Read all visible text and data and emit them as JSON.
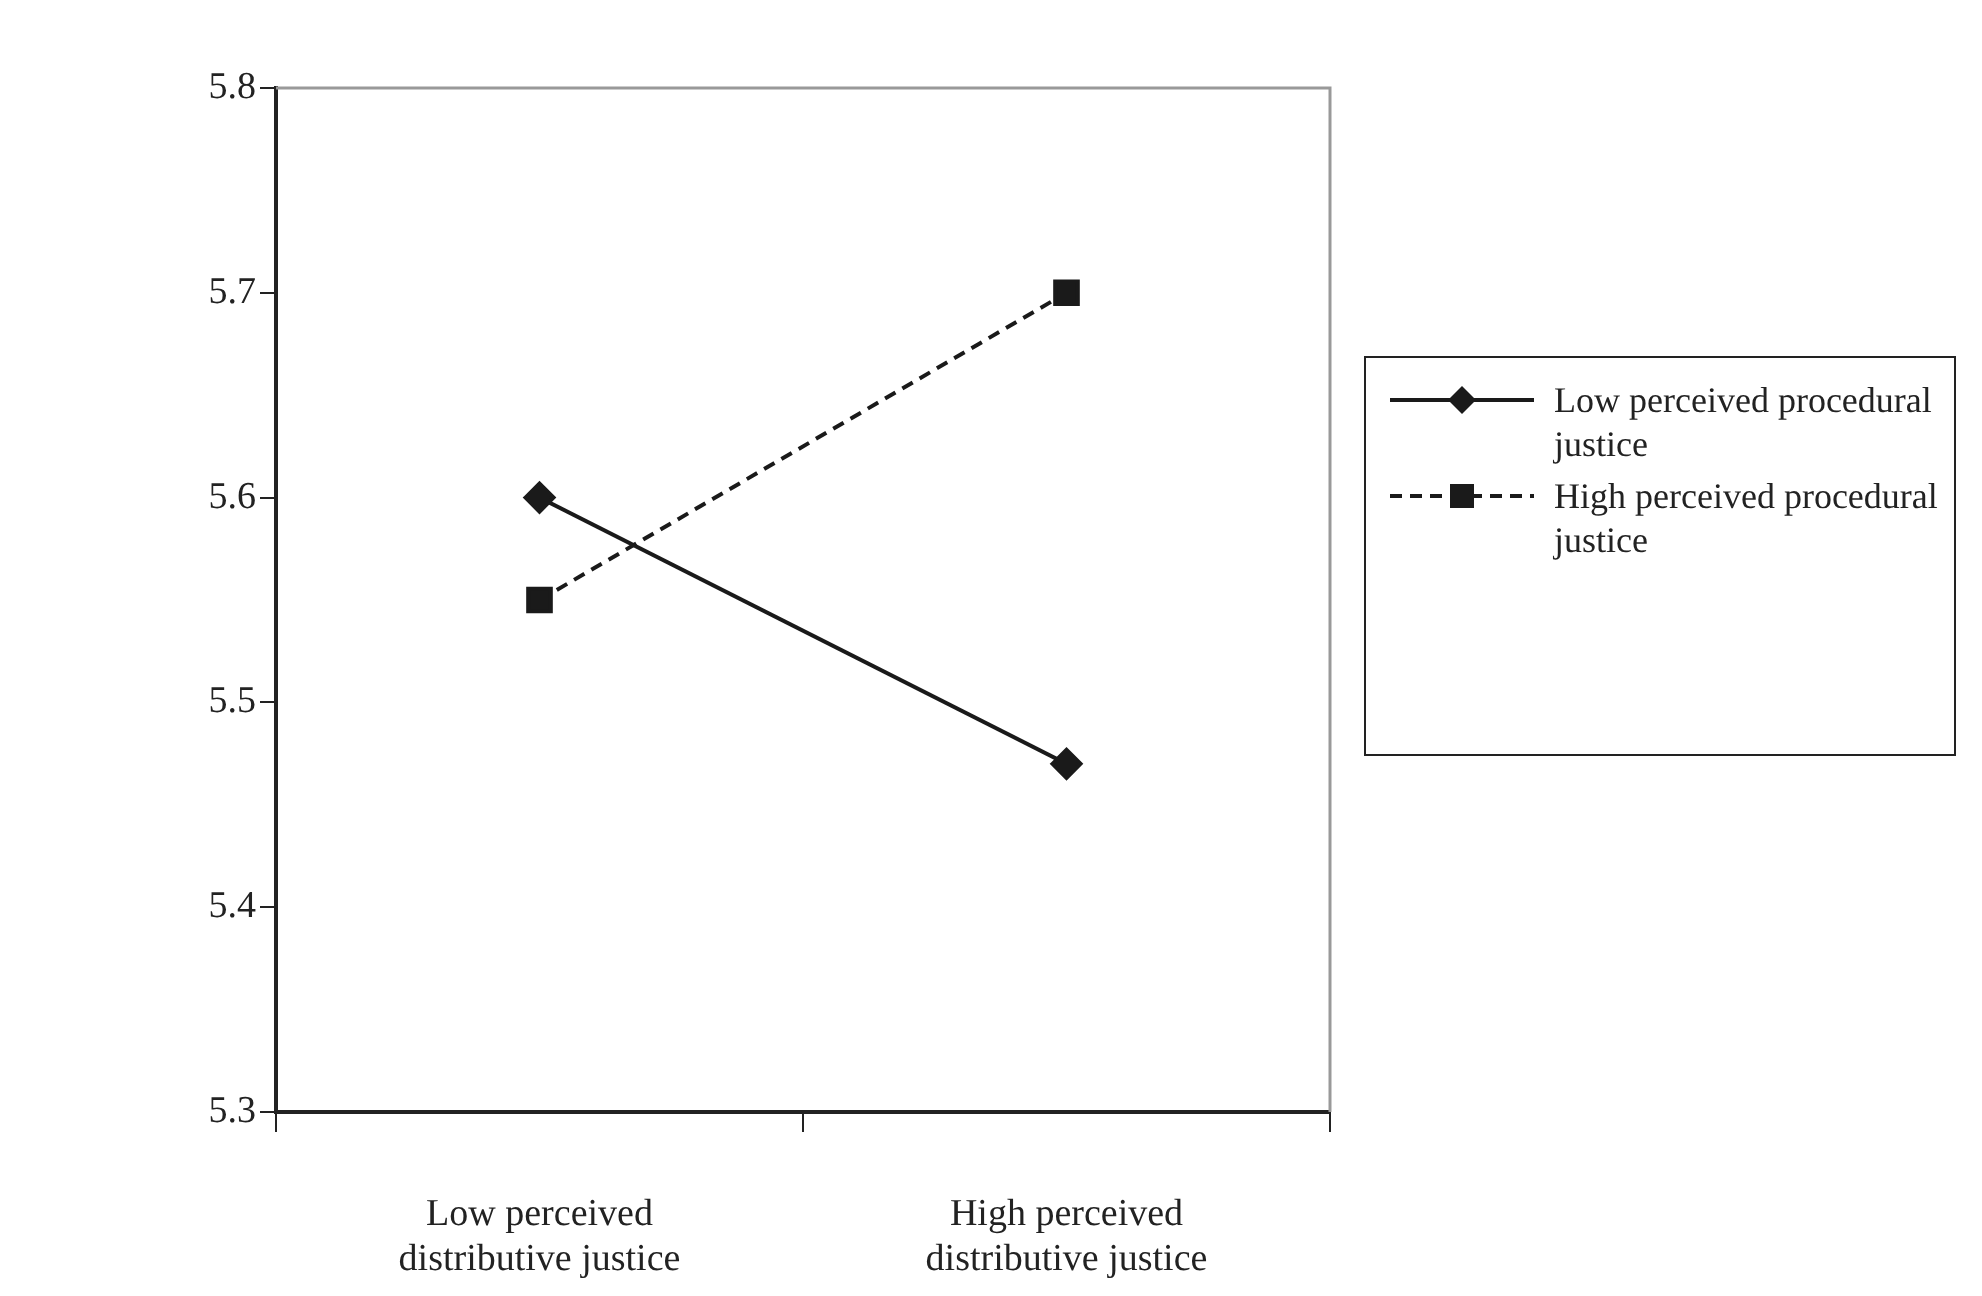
{
  "chart_data": {
    "type": "line",
    "categories": [
      "Low perceived distributive justice",
      "High perceived distributive justice"
    ],
    "ylim": [
      5.3,
      5.8
    ],
    "yticks": [
      5.3,
      5.4,
      5.5,
      5.6,
      5.7,
      5.8
    ],
    "grid": false,
    "legend": "right",
    "series": [
      {
        "name": "Low perceived procedural justice",
        "color": "#1a1a1a",
        "values": [
          5.6,
          5.47
        ],
        "marker": "diamond",
        "line_style": "solid"
      },
      {
        "name": "High perceived procedural justice",
        "color": "#1a1a1a",
        "values": [
          5.55,
          5.7
        ],
        "marker": "square",
        "line_style": "dashed"
      }
    ]
  }
}
